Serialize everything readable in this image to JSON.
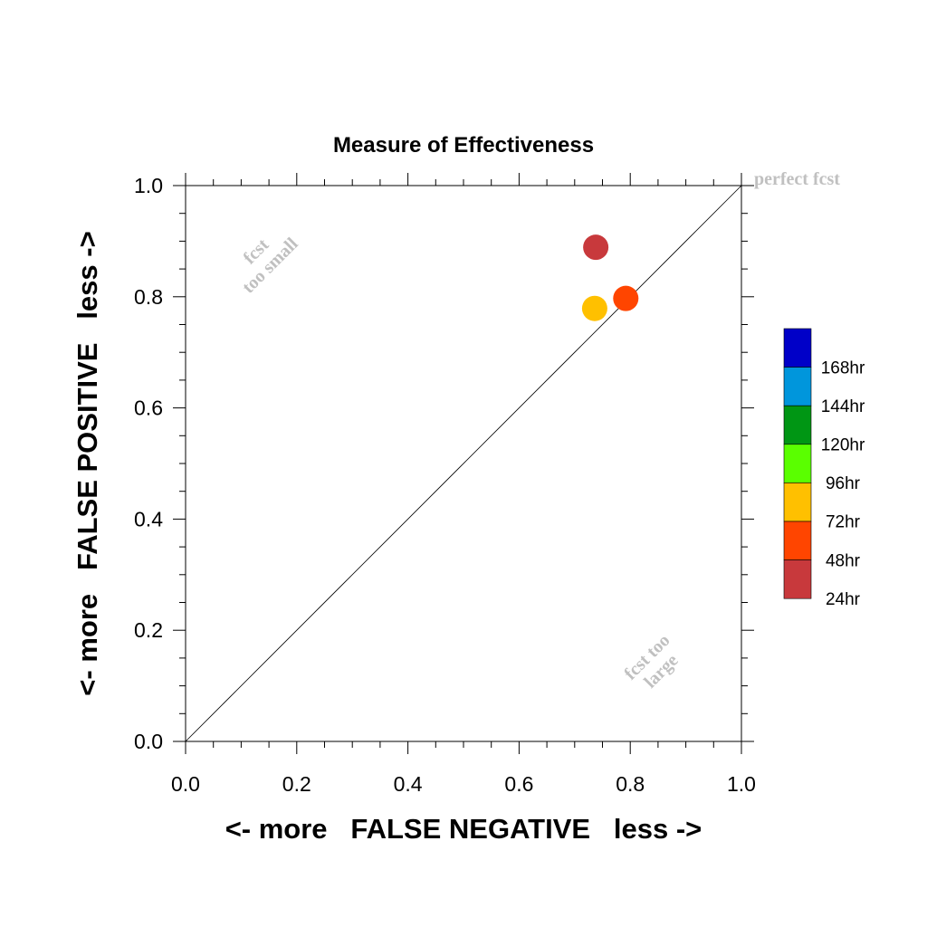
{
  "chart_data": {
    "type": "scatter",
    "title": "Measure of Effectiveness",
    "xlabel": "<- more   FALSE NEGATIVE   less ->",
    "ylabel": "<- more   FALSE POSITIVE   less ->",
    "xlim": [
      0.0,
      1.0
    ],
    "ylim": [
      0.0,
      1.0
    ],
    "xticks": [
      "0.0",
      "0.2",
      "0.4",
      "0.6",
      "0.8",
      "1.0"
    ],
    "yticks": [
      "0.0",
      "0.2",
      "0.4",
      "0.6",
      "0.8",
      "1.0"
    ],
    "grid": false,
    "diagonal_label": "perfect fcst",
    "annotations": [
      {
        "text_lines": [
          "fcst",
          "too small"
        ],
        "region": "upper-left"
      },
      {
        "text_lines": [
          "fcst too",
          "large"
        ],
        "region": "lower-right"
      }
    ],
    "points": [
      {
        "label": "24hr",
        "x": 0.738,
        "y": 0.889,
        "color": "#c8393c"
      },
      {
        "label": "48hr",
        "x": 0.792,
        "y": 0.797,
        "color": "#ff4500"
      },
      {
        "label": "72hr",
        "x": 0.736,
        "y": 0.779,
        "color": "#ffc000"
      }
    ],
    "legend": {
      "placement": "right",
      "entries": [
        {
          "label": "168hr",
          "color": "#0000c8"
        },
        {
          "label": "144hr",
          "color": "#0096dc"
        },
        {
          "label": "120hr",
          "color": "#009614"
        },
        {
          "label": "96hr",
          "color": "#5aff00"
        },
        {
          "label": "72hr",
          "color": "#ffc000"
        },
        {
          "label": "48hr",
          "color": "#ff4500"
        },
        {
          "label": "24hr",
          "color": "#c8393c"
        }
      ]
    }
  }
}
